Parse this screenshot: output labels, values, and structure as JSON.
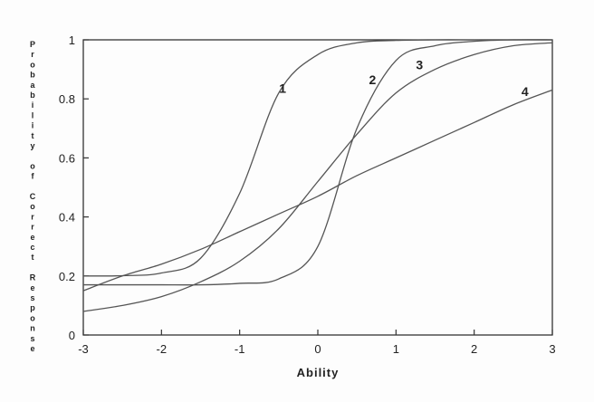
{
  "chart_data": {
    "type": "line",
    "title": "",
    "xlabel": "Ability",
    "ylabel": "Probability of Correct Response",
    "xlim": [
      -3,
      3
    ],
    "ylim": [
      0,
      1
    ],
    "x_ticks": [
      -3,
      -2,
      -1,
      0,
      1,
      2,
      3
    ],
    "y_ticks": [
      0,
      0.2,
      0.4,
      0.6,
      0.8,
      1
    ],
    "x_tick_labels": [
      "-3",
      "-2",
      "-1",
      "0",
      "1",
      "2",
      "3"
    ],
    "y_tick_labels": [
      "0",
      "0.2",
      "0.4",
      "0.6",
      "0.8",
      "1"
    ],
    "grid": false,
    "x": [
      -3,
      -2.5,
      -2,
      -1.5,
      -1,
      -0.5,
      0,
      0.5,
      1,
      1.5,
      2,
      2.5,
      3
    ],
    "series": [
      {
        "name": "1",
        "label_at": [
          -0.45,
          0.82
        ],
        "values": [
          0.2,
          0.201,
          0.21,
          0.26,
          0.48,
          0.82,
          0.95,
          0.99,
          0.998,
          1.0,
          1.0,
          1.0,
          1.0
        ]
      },
      {
        "name": "2",
        "label_at": [
          0.7,
          0.85
        ],
        "values": [
          0.17,
          0.17,
          0.17,
          0.17,
          0.175,
          0.19,
          0.3,
          0.7,
          0.93,
          0.98,
          0.995,
          1.0,
          1.0
        ]
      },
      {
        "name": "3",
        "label_at": [
          1.3,
          0.9
        ],
        "values": [
          0.08,
          0.1,
          0.13,
          0.18,
          0.25,
          0.36,
          0.52,
          0.68,
          0.82,
          0.9,
          0.95,
          0.98,
          0.99
        ]
      },
      {
        "name": "4",
        "label_at": [
          2.65,
          0.81
        ],
        "values": [
          0.15,
          0.2,
          0.24,
          0.29,
          0.35,
          0.41,
          0.47,
          0.54,
          0.6,
          0.66,
          0.72,
          0.78,
          0.83
        ]
      }
    ]
  }
}
